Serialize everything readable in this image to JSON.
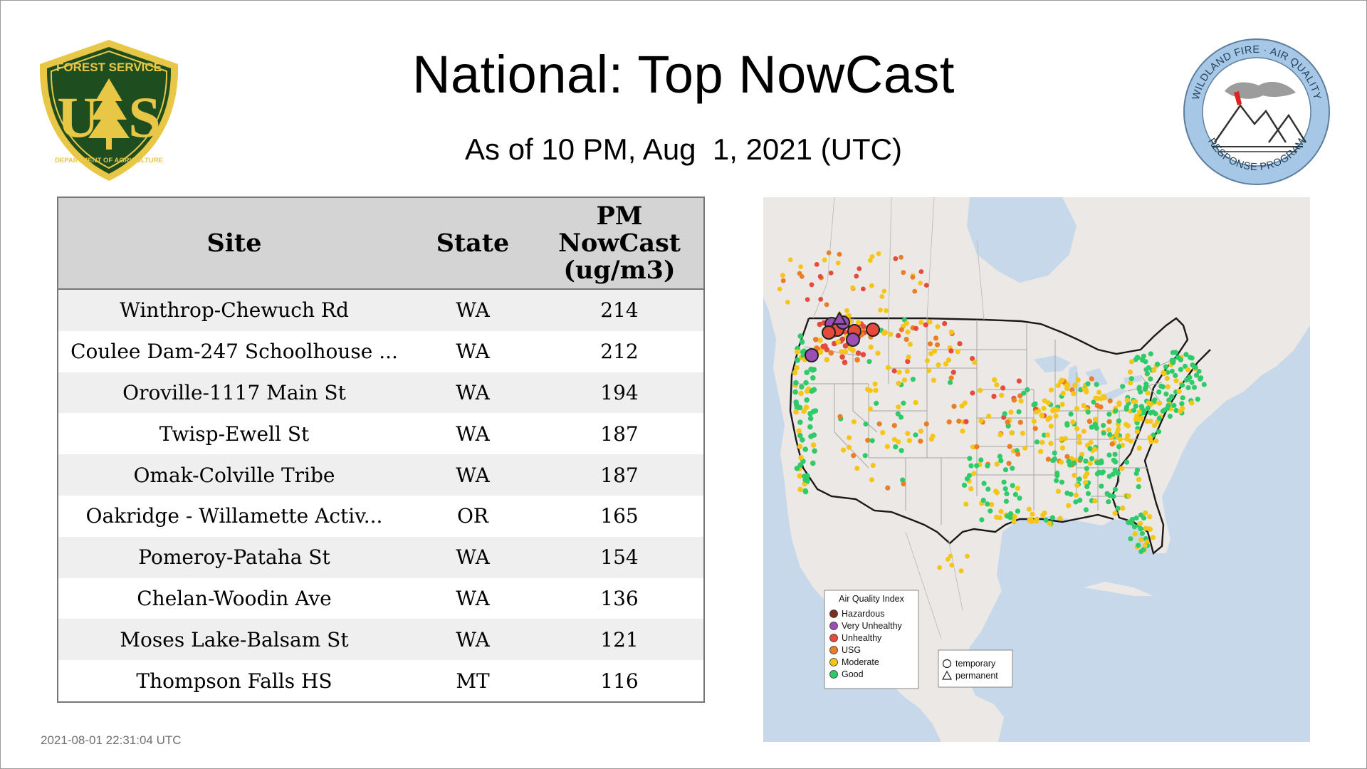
{
  "header": {
    "title": "National: Top NowCast",
    "subtitle": "As of 10 PM, Aug  1, 2021 (UTC)"
  },
  "logos": {
    "left": {
      "icon": "forest-service-shield-icon",
      "text_top": "FOREST SERVICE",
      "letters": "U  S",
      "text_bottom": "DEPARTMENT OF AGRICULTURE",
      "colors": {
        "shield": "#1e4d1f",
        "trim": "#e8c646"
      }
    },
    "right": {
      "icon": "wildland-fire-air-quality-badge-icon",
      "text_top": "WILDLAND FIRE · AIR QUALITY",
      "text_bottom": "RESPONSE PROGRAM",
      "colors": {
        "ring": "#a6c8e6"
      }
    }
  },
  "table": {
    "columns": [
      "Site",
      "State",
      "PM NowCast (ug/m3)"
    ],
    "header_lines": {
      "site": "Site",
      "state": "State",
      "pm_1": "PM",
      "pm_2": "NowCast",
      "pm_3": "(ug/m3)"
    },
    "rows": [
      {
        "site": "Winthrop-Chewuch Rd",
        "state": "WA",
        "value": "214"
      },
      {
        "site": "Coulee Dam-247 Schoolhouse ...",
        "state": "WA",
        "value": "212"
      },
      {
        "site": "Oroville-1117 Main St",
        "state": "WA",
        "value": "194"
      },
      {
        "site": "Twisp-Ewell St",
        "state": "WA",
        "value": "187"
      },
      {
        "site": "Omak-Colville Tribe",
        "state": "WA",
        "value": "187"
      },
      {
        "site": "Oakridge - Willamette Activ...",
        "state": "OR",
        "value": "165"
      },
      {
        "site": "Pomeroy-Pataha St",
        "state": "WA",
        "value": "154"
      },
      {
        "site": "Chelan-Woodin Ave",
        "state": "WA",
        "value": "136"
      },
      {
        "site": "Moses Lake-Balsam St",
        "state": "WA",
        "value": "121"
      },
      {
        "site": "Thompson Falls HS",
        "state": "MT",
        "value": "116"
      }
    ]
  },
  "map": {
    "legend": {
      "title": "Air Quality Index",
      "items": [
        {
          "label": "Hazardous",
          "color": "#7e2f1f"
        },
        {
          "label": "Very Unhealthy",
          "color": "#9a4fb5"
        },
        {
          "label": "Unhealthy",
          "color": "#e64a3b"
        },
        {
          "label": "USG",
          "color": "#ea7d25"
        },
        {
          "label": "Moderate",
          "color": "#f5c518"
        },
        {
          "label": "Good",
          "color": "#2fcb6b"
        }
      ]
    },
    "shape_legend": {
      "temporary": "temporary",
      "permanent": "permanent"
    },
    "colors": {
      "water": "#c6d8ea",
      "land": "#ebe8e5",
      "border": "#1a1a1a",
      "state_line": "#a6a6a6"
    }
  },
  "footer": {
    "timestamp": "2021-08-01 22:31:04 UTC"
  }
}
